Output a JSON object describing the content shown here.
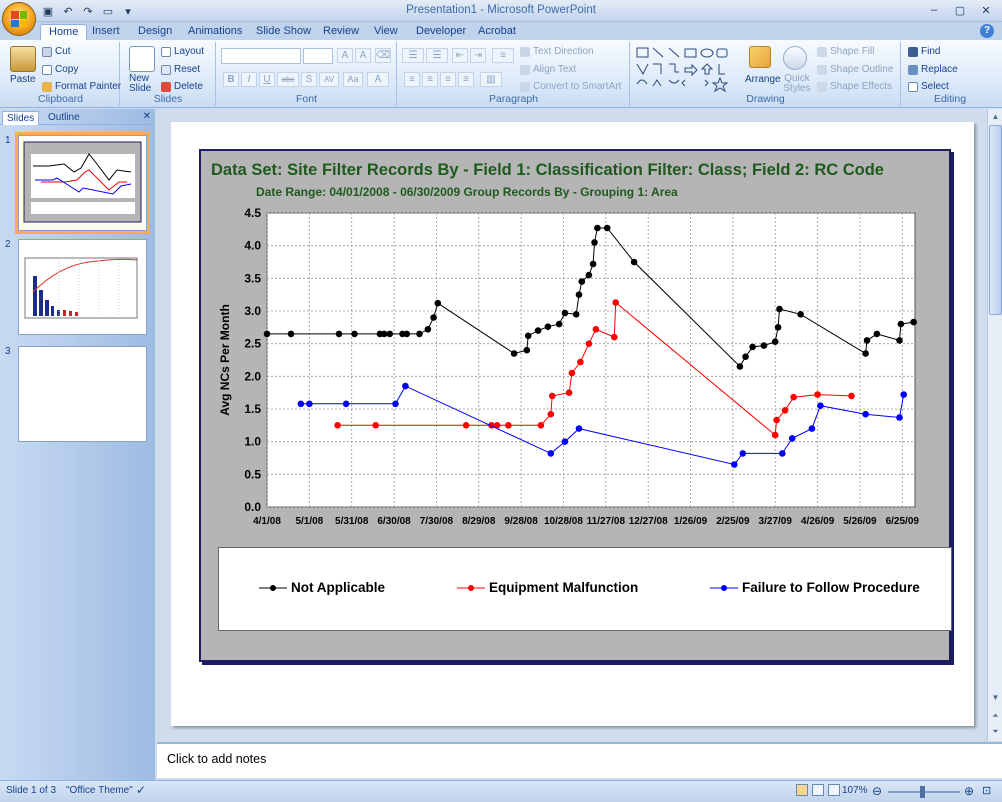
{
  "app": {
    "title": "Presentation1 - Microsoft PowerPoint",
    "quick_access": [
      {
        "icon": "save-icon",
        "glyph": "▣"
      },
      {
        "icon": "undo-icon",
        "glyph": "↶"
      },
      {
        "icon": "redo-icon",
        "glyph": "↷"
      },
      {
        "icon": "slide-view-icon",
        "glyph": "▭"
      },
      {
        "icon": "customize-icon",
        "glyph": "▾"
      }
    ],
    "window_controls": [
      "–",
      "▢",
      "✕"
    ]
  },
  "ribbon_tabs": [
    "Home",
    "Insert",
    "Design",
    "Animations",
    "Slide Show",
    "Review",
    "View",
    "Developer",
    "Acrobat"
  ],
  "active_tab": "Home",
  "help_glyph": "?",
  "ribbon": {
    "clipboard": {
      "label": "Clipboard",
      "paste": "Paste",
      "cut": "Cut",
      "copy": "Copy",
      "format_painter": "Format Painter"
    },
    "slides": {
      "label": "Slides",
      "new_slide": "New Slide",
      "layout": "Layout",
      "reset": "Reset",
      "delete": "Delete"
    },
    "font": {
      "label": "Font",
      "buttons": [
        "B",
        "I",
        "U",
        "abc",
        "S",
        "AV",
        "Aa",
        "A"
      ]
    },
    "paragraph": {
      "label": "Paragraph",
      "text_direction": "Text Direction",
      "align_text": "Align Text",
      "convert_smartart": "Convert to SmartArt"
    },
    "drawing": {
      "label": "Drawing",
      "arrange": "Arrange",
      "quick_styles": "Quick Styles",
      "shape_fill": "Shape Fill",
      "shape_outline": "Shape Outline",
      "shape_effects": "Shape Effects"
    },
    "editing": {
      "label": "Editing",
      "find": "Find",
      "replace": "Replace",
      "select": "Select"
    }
  },
  "slides_pane": {
    "tabs": [
      "Slides",
      "Outline"
    ],
    "close_glyph": "✕",
    "thumbnails": [
      {
        "number": "1"
      },
      {
        "number": "2"
      },
      {
        "number": "3"
      }
    ]
  },
  "notes_placeholder": "Click to add notes",
  "status": {
    "slide": "Slide 1 of 3",
    "theme": "\"Office Theme\"",
    "zoom": "107%"
  },
  "chart_data": {
    "type": "line",
    "title": "Data Set: Site   Filter Records By - Field 1: Classification  Filter: Class; Field 2: RC Code",
    "subtitle": "Date Range: 04/01/2008 - 06/30/2009   Group Records By - Grouping 1: Area",
    "ylabel": "Avg NCs Per Month",
    "xlabel": "",
    "ylim": [
      0,
      4.5
    ],
    "yticks": [
      "0.0",
      "0.5",
      "1.0",
      "1.5",
      "2.0",
      "2.5",
      "3.0",
      "3.5",
      "4.0",
      "4.5"
    ],
    "x_range": [
      "2008-04-01",
      "2009-07-04"
    ],
    "xtick_dates": [
      "2008-04-01",
      "2008-05-01",
      "2008-05-31",
      "2008-06-30",
      "2008-07-30",
      "2008-08-29",
      "2008-09-28",
      "2008-10-28",
      "2008-11-27",
      "2008-12-27",
      "2009-01-26",
      "2009-02-25",
      "2009-03-27",
      "2009-04-26",
      "2009-05-26",
      "2009-06-25"
    ],
    "xtick_labels": [
      "4/1/08",
      "5/1/08",
      "5/31/08",
      "6/30/08",
      "7/30/08",
      "8/29/08",
      "9/28/08",
      "10/28/08",
      "11/27/08",
      "12/27/08",
      "1/26/09",
      "2/25/09",
      "3/27/09",
      "4/26/09",
      "5/26/09",
      "6/25/09"
    ],
    "grid": true,
    "legend_position": "bottom",
    "series": [
      {
        "name": "Not Applicable",
        "color": "#000000",
        "points": [
          [
            "2008-04-01",
            2.65
          ],
          [
            "2008-04-18",
            2.65
          ],
          [
            "2008-05-22",
            2.65
          ],
          [
            "2008-06-02",
            2.65
          ],
          [
            "2008-06-20",
            2.65
          ],
          [
            "2008-06-23",
            2.65
          ],
          [
            "2008-06-27",
            2.65
          ],
          [
            "2008-07-06",
            2.65
          ],
          [
            "2008-07-09",
            2.65
          ],
          [
            "2008-07-18",
            2.65
          ],
          [
            "2008-07-24",
            2.72
          ],
          [
            "2008-07-28",
            2.9
          ],
          [
            "2008-07-31",
            3.12
          ],
          [
            "2008-09-23",
            2.35
          ],
          [
            "2008-10-02",
            2.4
          ],
          [
            "2008-10-03",
            2.62
          ],
          [
            "2008-10-10",
            2.7
          ],
          [
            "2008-10-17",
            2.76
          ],
          [
            "2008-10-25",
            2.8
          ],
          [
            "2008-10-29",
            2.97
          ],
          [
            "2008-11-06",
            2.95
          ],
          [
            "2008-11-08",
            3.25
          ],
          [
            "2008-11-10",
            3.45
          ],
          [
            "2008-11-15",
            3.55
          ],
          [
            "2008-11-18",
            3.72
          ],
          [
            "2008-11-19",
            4.05
          ],
          [
            "2008-11-21",
            4.27
          ],
          [
            "2008-11-28",
            4.27
          ],
          [
            "2008-12-17",
            3.75
          ],
          [
            "2009-03-02",
            2.15
          ],
          [
            "2009-03-06",
            2.3
          ],
          [
            "2009-03-11",
            2.45
          ],
          [
            "2009-03-19",
            2.47
          ],
          [
            "2009-03-27",
            2.53
          ],
          [
            "2009-03-29",
            2.75
          ],
          [
            "2009-03-30",
            3.03
          ],
          [
            "2009-04-14",
            2.95
          ],
          [
            "2009-05-30",
            2.35
          ],
          [
            "2009-05-31",
            2.55
          ],
          [
            "2009-06-07",
            2.65
          ],
          [
            "2009-06-23",
            2.55
          ],
          [
            "2009-06-24",
            2.8
          ],
          [
            "2009-07-03",
            2.83
          ]
        ]
      },
      {
        "name": "Equipment Malfunction",
        "color": "#ff0000",
        "points": [
          [
            "2008-05-21",
            1.25
          ],
          [
            "2008-06-17",
            1.25
          ],
          [
            "2008-08-20",
            1.25
          ],
          [
            "2008-09-07",
            1.25
          ],
          [
            "2008-09-11",
            1.25
          ],
          [
            "2008-09-19",
            1.25
          ],
          [
            "2008-10-12",
            1.25
          ],
          [
            "2008-10-19",
            1.42
          ],
          [
            "2008-10-20",
            1.7
          ],
          [
            "2008-11-01",
            1.75
          ],
          [
            "2008-11-03",
            2.05
          ],
          [
            "2008-11-09",
            2.22
          ],
          [
            "2008-11-15",
            2.5
          ],
          [
            "2008-11-20",
            2.72
          ],
          [
            "2008-12-03",
            2.6
          ],
          [
            "2008-12-04",
            3.13
          ],
          [
            "2009-03-27",
            1.1
          ],
          [
            "2009-03-28",
            1.33
          ],
          [
            "2009-04-03",
            1.48
          ],
          [
            "2009-04-09",
            1.68
          ],
          [
            "2009-04-26",
            1.72
          ],
          [
            "2009-05-20",
            1.7
          ]
        ]
      },
      {
        "name": "Failure to Follow Procedure",
        "color": "#0000ff",
        "points": [
          [
            "2008-04-25",
            1.58
          ],
          [
            "2008-05-01",
            1.58
          ],
          [
            "2008-05-27",
            1.58
          ],
          [
            "2008-07-01",
            1.58
          ],
          [
            "2008-07-08",
            1.85
          ],
          [
            "2008-10-19",
            0.82
          ],
          [
            "2008-10-29",
            1.0
          ],
          [
            "2008-11-08",
            1.2
          ],
          [
            "2009-02-26",
            0.65
          ],
          [
            "2009-03-04",
            0.82
          ],
          [
            "2009-04-01",
            0.82
          ],
          [
            "2009-04-08",
            1.05
          ],
          [
            "2009-04-22",
            1.2
          ],
          [
            "2009-04-28",
            1.55
          ],
          [
            "2009-05-30",
            1.42
          ],
          [
            "2009-06-23",
            1.37
          ],
          [
            "2009-06-26",
            1.72
          ]
        ]
      }
    ]
  }
}
